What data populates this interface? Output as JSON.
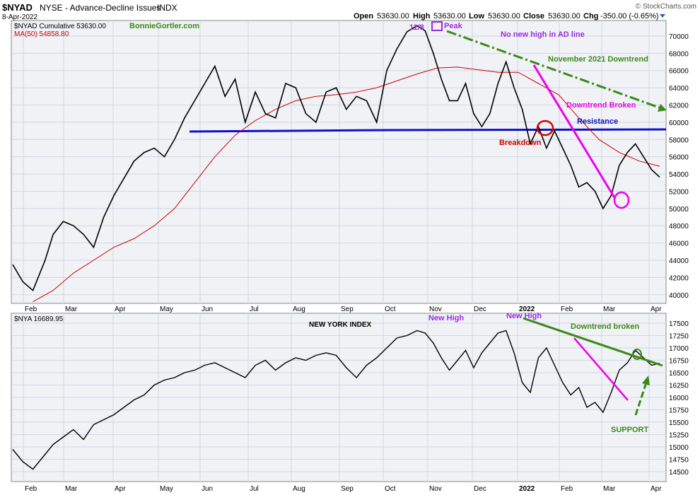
{
  "header": {
    "symbol": "$NYAD",
    "exchange_name": "NYSE - Advance-Decline Issues",
    "index_tag": "INDX",
    "date": "8-Apr-2022",
    "watermark": "© StockCharts.com",
    "ohlc": {
      "open_label": "Open",
      "open": "53630.00",
      "high_label": "High",
      "high": "53630.00",
      "low_label": "Low",
      "low": "53630.00",
      "close_label": "Close",
      "close": "53630.00",
      "chg_label": "Chg",
      "chg": "-350.00 (-0.65%)"
    }
  },
  "colors": {
    "background": "#f0f2f6",
    "grid": "#cfd6e2",
    "price": "#000000",
    "ma": "#cc0000",
    "resistance": "#1010c8",
    "downtrend_pink": "#ee00ee",
    "green": "#3a8a18",
    "purple": "#9a2be2",
    "red_text": "#cc0000"
  },
  "chart_data": [
    {
      "type": "line",
      "title": "$NYAD NYSE - Advance-Decline Issues INDX",
      "legend": [
        {
          "label": "$NYAD Cumulative 53630.00",
          "color": "#000000"
        },
        {
          "label": "MA(50) 54858.80",
          "color": "#cc0000"
        }
      ],
      "y_ticks": [
        40000,
        42000,
        44000,
        46000,
        48000,
        50000,
        52000,
        54000,
        56000,
        58000,
        60000,
        62000,
        64000,
        66000,
        68000,
        70000
      ],
      "ylim": [
        39000,
        71800
      ],
      "x_labels": [
        "Feb",
        "Mar",
        "Apr",
        "May",
        "Jun",
        "Jul",
        "Aug",
        "Sep",
        "Oct",
        "Nov",
        "Dec",
        "2022",
        "Feb",
        "Mar",
        "Apr"
      ],
      "grid": true,
      "series": [
        {
          "name": "$NYAD Cumulative",
          "points": [
            [
              0,
              43500
            ],
            [
              0.5,
              41500
            ],
            [
              1,
              40500
            ],
            [
              1.6,
              44000
            ],
            [
              2,
              47000
            ],
            [
              2.5,
              48500
            ],
            [
              3,
              48000
            ],
            [
              3.5,
              47000
            ],
            [
              4,
              45500
            ],
            [
              4.5,
              49000
            ],
            [
              5,
              51500
            ],
            [
              5.5,
              53500
            ],
            [
              6,
              55500
            ],
            [
              6.5,
              56500
            ],
            [
              7,
              57000
            ],
            [
              7.5,
              56000
            ],
            [
              8,
              58000
            ],
            [
              8.5,
              60500
            ],
            [
              9,
              62500
            ],
            [
              9.5,
              64500
            ],
            [
              10,
              66500
            ],
            [
              10.5,
              63000
            ],
            [
              11,
              65000
            ],
            [
              11.5,
              60000
            ],
            [
              12,
              63500
            ],
            [
              12.5,
              61000
            ],
            [
              13,
              60500
            ],
            [
              13.5,
              64500
            ],
            [
              14,
              64000
            ],
            [
              14.5,
              61000
            ],
            [
              15,
              60000
            ],
            [
              15.5,
              63500
            ],
            [
              16,
              64000
            ],
            [
              16.5,
              61500
            ],
            [
              17,
              63000
            ],
            [
              17.5,
              62500
            ],
            [
              18,
              60000
            ],
            [
              18.5,
              66000
            ],
            [
              19,
              68500
            ],
            [
              19.5,
              70500
            ],
            [
              20,
              71200
            ],
            [
              20.4,
              70600
            ],
            [
              20.8,
              68000
            ],
            [
              21.2,
              65000
            ],
            [
              21.6,
              62500
            ],
            [
              22,
              62500
            ],
            [
              22.4,
              64500
            ],
            [
              22.8,
              61000
            ],
            [
              23.2,
              59500
            ],
            [
              23.6,
              61000
            ],
            [
              24,
              64500
            ],
            [
              24.4,
              67000
            ],
            [
              24.8,
              64000
            ],
            [
              25.2,
              61500
            ],
            [
              25.6,
              57500
            ],
            [
              26,
              59500
            ],
            [
              26.4,
              57000
            ],
            [
              26.8,
              59000
            ],
            [
              27.2,
              57000
            ],
            [
              27.6,
              55000
            ],
            [
              28,
              52500
            ],
            [
              28.4,
              53000
            ],
            [
              28.8,
              52000
            ],
            [
              29.2,
              50000
            ],
            [
              29.6,
              51500
            ],
            [
              30,
              55000
            ],
            [
              30.4,
              56500
            ],
            [
              30.8,
              57500
            ],
            [
              31.2,
              56000
            ],
            [
              31.6,
              54500
            ],
            [
              32,
              53630
            ]
          ]
        },
        {
          "name": "MA(50)",
          "points": [
            [
              1,
              39200
            ],
            [
              2,
              40500
            ],
            [
              3,
              42500
            ],
            [
              4,
              44000
            ],
            [
              5,
              45500
            ],
            [
              6,
              46500
            ],
            [
              7,
              48000
            ],
            [
              8,
              50000
            ],
            [
              9,
              53000
            ],
            [
              10,
              56000
            ],
            [
              11,
              58500
            ],
            [
              12,
              60200
            ],
            [
              13,
              61500
            ],
            [
              14,
              62500
            ],
            [
              15,
              63000
            ],
            [
              16,
              63200
            ],
            [
              17,
              63500
            ],
            [
              18,
              64000
            ],
            [
              19,
              64800
            ],
            [
              20,
              65600
            ],
            [
              21,
              66300
            ],
            [
              22,
              66400
            ],
            [
              23,
              66100
            ],
            [
              24,
              65800
            ],
            [
              25,
              65800
            ],
            [
              26,
              64500
            ],
            [
              27,
              63200
            ],
            [
              28,
              60500
            ],
            [
              29,
              58000
            ],
            [
              30,
              56500
            ],
            [
              31,
              55500
            ],
            [
              32,
              54900
            ]
          ]
        }
      ]
    },
    {
      "type": "line",
      "title": "NEW YORK INDEX",
      "legend": [
        {
          "label": "$NYA 16689.95",
          "color": "#000000"
        }
      ],
      "y_ticks": [
        14500,
        14750,
        15000,
        15250,
        15500,
        15750,
        16000,
        16250,
        16500,
        16750,
        17000,
        17250,
        17500
      ],
      "ylim": [
        14300,
        17700
      ],
      "x_labels": [
        "Feb",
        "Mar",
        "Apr",
        "May",
        "Jun",
        "Jul",
        "Aug",
        "Sep",
        "Oct",
        "Nov",
        "Dec",
        "2022",
        "Feb",
        "Mar",
        "Apr"
      ],
      "grid": true,
      "series": [
        {
          "name": "$NYA",
          "points": [
            [
              0,
              14950
            ],
            [
              0.5,
              14700
            ],
            [
              1,
              14550
            ],
            [
              1.6,
              14850
            ],
            [
              2,
              15050
            ],
            [
              2.5,
              15200
            ],
            [
              3,
              15350
            ],
            [
              3.5,
              15150
            ],
            [
              4,
              15450
            ],
            [
              4.5,
              15550
            ],
            [
              5,
              15650
            ],
            [
              5.5,
              15800
            ],
            [
              6,
              15950
            ],
            [
              6.5,
              16050
            ],
            [
              7,
              16250
            ],
            [
              7.5,
              16350
            ],
            [
              8,
              16400
            ],
            [
              8.5,
              16500
            ],
            [
              9,
              16550
            ],
            [
              9.5,
              16650
            ],
            [
              10,
              16700
            ],
            [
              10.5,
              16600
            ],
            [
              11,
              16500
            ],
            [
              11.5,
              16400
            ],
            [
              12,
              16650
            ],
            [
              12.5,
              16750
            ],
            [
              13,
              16550
            ],
            [
              13.5,
              16700
            ],
            [
              14,
              16800
            ],
            [
              14.5,
              16750
            ],
            [
              15,
              16850
            ],
            [
              15.5,
              16900
            ],
            [
              16,
              16850
            ],
            [
              16.5,
              16600
            ],
            [
              17,
              16400
            ],
            [
              17.5,
              16650
            ],
            [
              18,
              16800
            ],
            [
              18.5,
              17000
            ],
            [
              19,
              17200
            ],
            [
              19.5,
              17250
            ],
            [
              20,
              17350
            ],
            [
              20.4,
              17300
            ],
            [
              20.8,
              17100
            ],
            [
              21.2,
              16800
            ],
            [
              21.6,
              16550
            ],
            [
              22,
              16750
            ],
            [
              22.4,
              16950
            ],
            [
              22.8,
              16600
            ],
            [
              23.2,
              16900
            ],
            [
              23.6,
              17100
            ],
            [
              24,
              17300
            ],
            [
              24.4,
              17350
            ],
            [
              24.8,
              16900
            ],
            [
              25.2,
              16300
            ],
            [
              25.6,
              16100
            ],
            [
              26,
              16800
            ],
            [
              26.4,
              17000
            ],
            [
              26.8,
              16650
            ],
            [
              27.2,
              16300
            ],
            [
              27.6,
              16050
            ],
            [
              28,
              16200
            ],
            [
              28.4,
              15800
            ],
            [
              28.8,
              15900
            ],
            [
              29.2,
              15700
            ],
            [
              29.6,
              16100
            ],
            [
              30,
              16550
            ],
            [
              30.4,
              16700
            ],
            [
              30.8,
              16950
            ],
            [
              31.2,
              16800
            ],
            [
              31.6,
              16650
            ],
            [
              32,
              16690
            ]
          ]
        }
      ]
    }
  ],
  "annotations": {
    "author": "BonnieGortler.com",
    "date_118": "11/8",
    "peak": "Peak",
    "no_new_high": "No new high in AD line",
    "nov_downtrend": "November 2021  Downtrend",
    "downtrend_broken_top": "Downtrend Broken",
    "resistance": "Resistance",
    "breakdown": "Breakdown",
    "new_high_1": "New High",
    "new_high_2": "New High",
    "downtrend_broken_bottom": "Downtrend broken",
    "support": "SUPPORT",
    "lower_title": "NEW YORK INDEX"
  }
}
